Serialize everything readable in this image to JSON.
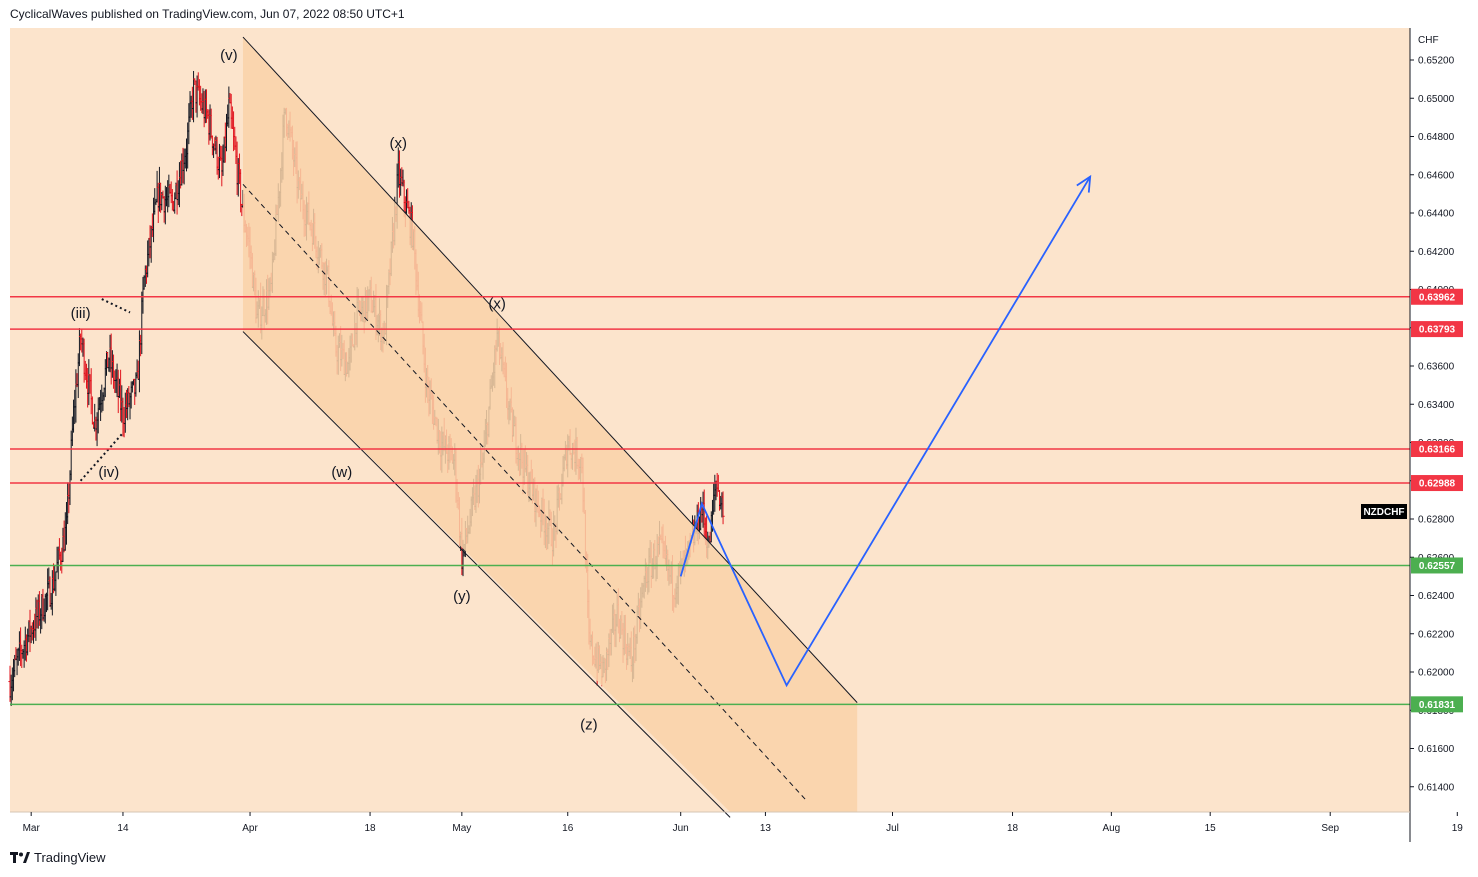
{
  "header": {
    "publisher": "CyclicalWaves published on TradingView.com, Jun 07, 2022 08:50 UTC+1"
  },
  "footer": {
    "brand": "TradingView",
    "logo_icon": "tradingview-logo-icon"
  },
  "colors": {
    "background": "#fce4cc",
    "channel_fill": "#f9d2a8",
    "bull_candle": "#131722",
    "bear_candle": "#e0141e",
    "resistance": "#f23645",
    "support": "#4caf50",
    "projection": "#2962ff",
    "symbol_badge": "#000000"
  },
  "chart_data": {
    "type": "candlestick",
    "symbol": "NZDCHF",
    "currency": "CHF",
    "x_ticks": [
      "Mar",
      "14",
      "Apr",
      "18",
      "May",
      "16",
      "Jun",
      "13",
      "Jul",
      "18",
      "Aug",
      "15",
      "Sep",
      "19"
    ],
    "y_ticks": [
      "0.65200",
      "0.65000",
      "0.64800",
      "0.64600",
      "0.64400",
      "0.64200",
      "0.64000",
      "0.63800",
      "0.63600",
      "0.63400",
      "0.63200",
      "0.63000",
      "0.62800",
      "0.62600",
      "0.62400",
      "0.62200",
      "0.62000",
      "0.61800",
      "0.61600",
      "0.61400"
    ],
    "ylim": [
      0.6125,
      0.6535
    ],
    "price_levels": [
      {
        "value": 0.63962,
        "label": "0.63962",
        "kind": "resistance"
      },
      {
        "value": 0.63793,
        "label": "0.63793",
        "kind": "resistance"
      },
      {
        "value": 0.63166,
        "label": "0.63166",
        "kind": "resistance"
      },
      {
        "value": 0.62988,
        "label": "0.62988",
        "kind": "resistance"
      },
      {
        "value": 0.62557,
        "label": "0.62557",
        "kind": "support"
      },
      {
        "value": 0.61831,
        "label": "0.61831",
        "kind": "support"
      }
    ],
    "wave_labels": [
      {
        "text": "(v)",
        "date": "2022-03-29",
        "price": 0.652
      },
      {
        "text": "(iii)",
        "date": "2022-03-08",
        "price": 0.6385
      },
      {
        "text": "(iv)",
        "date": "2022-03-12",
        "price": 0.6302
      },
      {
        "text": "(x)",
        "date": "2022-04-22",
        "price": 0.6474
      },
      {
        "text": "(w)",
        "date": "2022-04-14",
        "price": 0.6302
      },
      {
        "text": "(x)",
        "date": "2022-05-06",
        "price": 0.639
      },
      {
        "text": "(y)",
        "date": "2022-05-01",
        "price": 0.6237
      },
      {
        "text": "(z)",
        "date": "2022-05-19",
        "price": 0.617
      }
    ],
    "channel": {
      "upper": [
        [
          "2022-03-31",
          0.6532
        ],
        [
          "2022-06-26",
          0.6184
        ]
      ],
      "middle": [
        [
          "2022-03-31",
          0.6455
        ],
        [
          "2022-06-19",
          0.6132
        ]
      ],
      "lower": [
        [
          "2022-03-31",
          0.6378
        ],
        [
          "2022-06-08",
          0.6124
        ]
      ]
    },
    "triangle": [
      [
        "2022-03-08",
        0.63
      ],
      [
        "2022-03-14",
        0.6325
      ],
      [
        "2022-03-11",
        0.6395
      ],
      [
        "2022-03-15",
        0.6388
      ]
    ],
    "projection": [
      [
        "2022-06-01",
        0.625
      ],
      [
        "2022-06-04",
        0.6288
      ],
      [
        "2022-06-16",
        0.6193
      ],
      [
        "2022-07-29",
        0.6459
      ]
    ],
    "candles": {
      "start_date": "2022-02-26",
      "end_date": "2022-06-07",
      "anchors": [
        [
          "2022-02-26",
          0.6195
        ],
        [
          "2022-02-28",
          0.6215
        ],
        [
          "2022-03-02",
          0.623
        ],
        [
          "2022-03-04",
          0.6245
        ],
        [
          "2022-03-06",
          0.6275
        ],
        [
          "2022-03-07",
          0.6335
        ],
        [
          "2022-03-08",
          0.6375
        ],
        [
          "2022-03-10",
          0.633
        ],
        [
          "2022-03-12",
          0.6365
        ],
        [
          "2022-03-14",
          0.6335
        ],
        [
          "2022-03-16",
          0.635
        ],
        [
          "2022-03-17",
          0.6405
        ],
        [
          "2022-03-19",
          0.645
        ],
        [
          "2022-03-21",
          0.6445
        ],
        [
          "2022-03-23",
          0.6475
        ],
        [
          "2022-03-24",
          0.6505
        ],
        [
          "2022-03-26",
          0.649
        ],
        [
          "2022-03-28",
          0.646
        ],
        [
          "2022-03-29",
          0.6495
        ],
        [
          "2022-03-31",
          0.644
        ],
        [
          "2022-04-01",
          0.642
        ],
        [
          "2022-04-02",
          0.6385
        ],
        [
          "2022-04-04",
          0.64
        ],
        [
          "2022-04-06",
          0.6495
        ],
        [
          "2022-04-08",
          0.645
        ],
        [
          "2022-04-10",
          0.643
        ],
        [
          "2022-04-12",
          0.6405
        ],
        [
          "2022-04-13",
          0.637
        ],
        [
          "2022-04-15",
          0.636
        ],
        [
          "2022-04-16",
          0.6385
        ],
        [
          "2022-04-18",
          0.6395
        ],
        [
          "2022-04-20",
          0.6375
        ],
        [
          "2022-04-22",
          0.646
        ],
        [
          "2022-04-24",
          0.643
        ],
        [
          "2022-04-26",
          0.635
        ],
        [
          "2022-04-28",
          0.632
        ],
        [
          "2022-04-30",
          0.631
        ],
        [
          "2022-05-01",
          0.626
        ],
        [
          "2022-05-04",
          0.631
        ],
        [
          "2022-05-06",
          0.6375
        ],
        [
          "2022-05-08",
          0.633
        ],
        [
          "2022-05-10",
          0.6305
        ],
        [
          "2022-05-12",
          0.6285
        ],
        [
          "2022-05-14",
          0.627
        ],
        [
          "2022-05-16",
          0.632
        ],
        [
          "2022-05-18",
          0.631
        ],
        [
          "2022-05-19",
          0.6215
        ],
        [
          "2022-05-21",
          0.62
        ],
        [
          "2022-05-23",
          0.623
        ],
        [
          "2022-05-25",
          0.6205
        ],
        [
          "2022-05-27",
          0.625
        ],
        [
          "2022-05-29",
          0.6265
        ],
        [
          "2022-05-31",
          0.6245
        ],
        [
          "2022-06-02",
          0.626
        ],
        [
          "2022-06-04",
          0.6285
        ],
        [
          "2022-06-05",
          0.6265
        ],
        [
          "2022-06-06",
          0.63
        ],
        [
          "2022-06-07",
          0.6285
        ]
      ]
    }
  }
}
